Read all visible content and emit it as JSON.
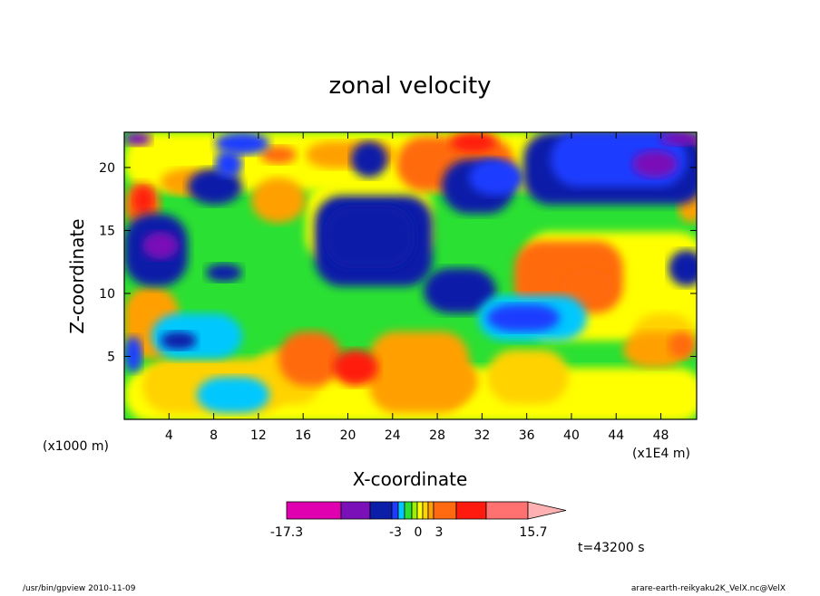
{
  "chart_data": {
    "type": "heatmap",
    "title": "zonal velocity",
    "xlabel": "X-coordinate",
    "ylabel": "Z-coordinate",
    "x_unit_left": "(x1000 m)",
    "x_unit_right": "(x1E4 m)",
    "x_ticks": [
      "4",
      "8",
      "12",
      "16",
      "20",
      "24",
      "28",
      "32",
      "36",
      "40",
      "44",
      "48"
    ],
    "y_ticks": [
      "5",
      "10",
      "15",
      "20"
    ],
    "xlim": [
      0,
      51.2
    ],
    "ylim": [
      0,
      22.8
    ],
    "colorbar": {
      "min_label": "-17.3",
      "max_label": "15.7",
      "mid_labels": [
        "-3",
        "0",
        "3"
      ],
      "colors": [
        "#e000b0",
        "#7a10b8",
        "#0a1ea8",
        "#1e3cff",
        "#00c8ff",
        "#2ce030",
        "#9cf000",
        "#ffff00",
        "#ffd200",
        "#ffa000",
        "#ff6a10",
        "#ff1a10",
        "#ff7070",
        "#ffb0b0"
      ]
    },
    "time_label": "t=43200 s",
    "background_color": "#2ce030"
  },
  "footer": {
    "left": "/usr/bin/gpview  2010-11-09",
    "right": "arare-earth-reikyaku2K_VelX.nc@VelX"
  }
}
